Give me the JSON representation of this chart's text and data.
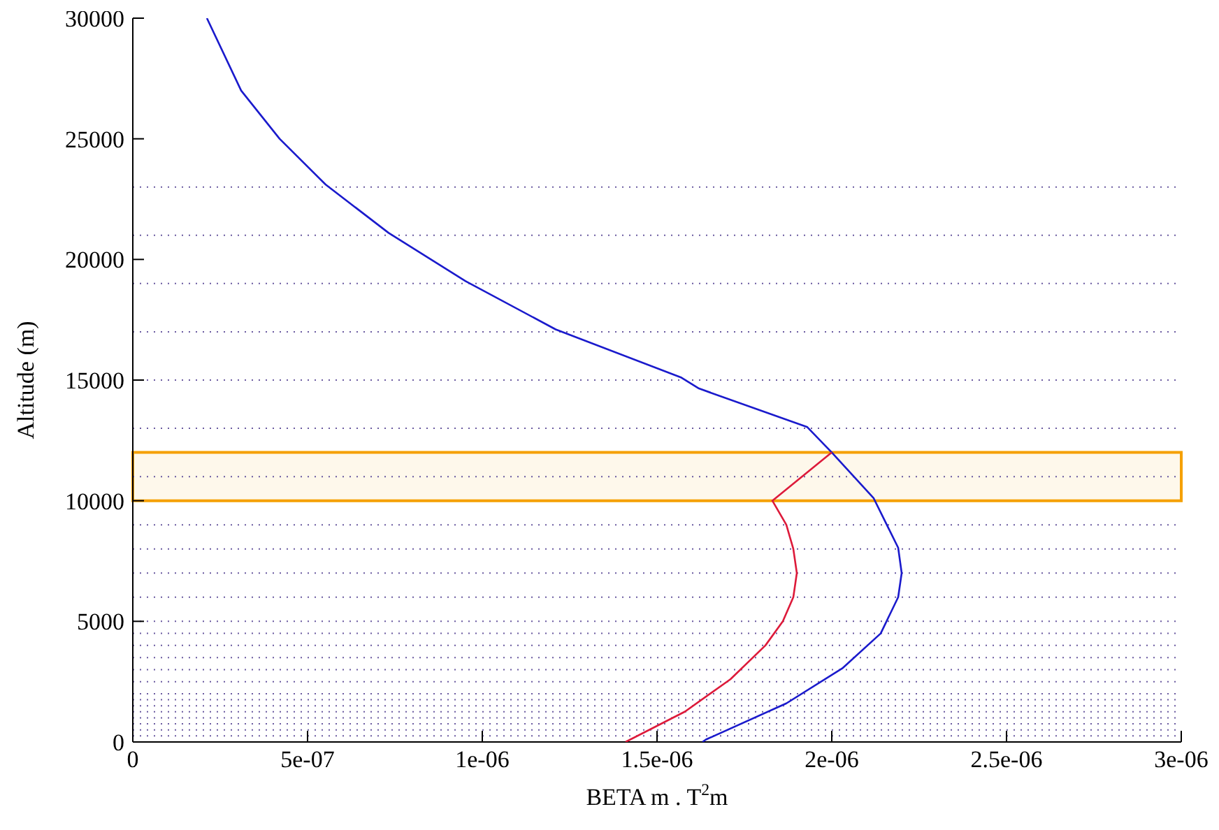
{
  "chart_data": {
    "type": "line",
    "xlabel": "BETA m . T$^{2}$m",
    "ylabel": "Altitude (m)",
    "series": [
      {
        "color": "#1a1acc",
        "x": [
          2.12e-07,
          3.1e-07,
          4.2e-07,
          5.52e-07,
          7.32e-07,
          9.52e-07,
          1.21e-06,
          1.57e-06,
          1.62e-06,
          1.93e-06,
          2e-06,
          2.12e-06,
          2.19e-06,
          2.2e-06,
          2.19e-06,
          2.14e-06,
          2.03e-06,
          1.87e-06,
          1.64e-06,
          1.63e-06
        ],
        "values": [
          30000,
          27000,
          25000,
          23100,
          21100,
          19100,
          17100,
          15100,
          14650,
          13050,
          12000,
          10100,
          8050,
          7000,
          6000,
          4500,
          3050,
          1600,
          100,
          0
        ]
      },
      {
        "color": "#dd1a3a",
        "x": [
          2e-06,
          1.83e-06,
          1.87e-06,
          1.89e-06,
          1.9e-06,
          1.89e-06,
          1.86e-06,
          1.81e-06,
          1.71e-06,
          1.58e-06,
          1.41e-06
        ],
        "values": [
          12000,
          10000,
          9000,
          8000,
          7000,
          6000,
          5000,
          4000,
          2600,
          1260,
          0
        ]
      }
    ],
    "xlim": [
      0,
      3e-06
    ],
    "xticks": [
      0,
      {
        "value": 5e-07,
        "label": "5e-07"
      },
      {
        "value": 1e-06,
        "label": "1e-06"
      },
      {
        "value": 1.5e-06,
        "label": "1.5e-06"
      },
      {
        "value": 2e-06,
        "label": "2e-06"
      },
      {
        "value": 2.5e-06,
        "label": "2.5e-06"
      },
      {
        "value": 3e-06,
        "label": "3e-06"
      }
    ],
    "ylim": [
      0,
      30000
    ],
    "yticks": [
      0,
      5000,
      10000,
      15000,
      20000,
      25000,
      30000
    ],
    "line_style": "solid",
    "marker": "none",
    "grid": false,
    "legend": false,
    "bands": [
      {
        "axis": "y",
        "from": 10000,
        "to": 12000,
        "color": "#f5a000"
      }
    ],
    "ref_lines": [
      {
        "axis": "y",
        "value": 23000,
        "color": "#6a5aa0",
        "line_style": "dotted"
      },
      {
        "axis": "y",
        "value": 21000,
        "color": "#6a5aa0",
        "line_style": "dotted"
      },
      {
        "axis": "y",
        "value": 19000,
        "color": "#6a5aa0",
        "line_style": "dotted"
      },
      {
        "axis": "y",
        "value": 17000,
        "color": "#6a5aa0",
        "line_style": "dotted"
      },
      {
        "axis": "y",
        "value": 15000,
        "color": "#6a5aa0",
        "line_style": "dotted"
      },
      {
        "axis": "y",
        "value": 13000,
        "color": "#6a5aa0",
        "line_style": "dotted"
      },
      {
        "axis": "y",
        "value": 11000,
        "color": "#6a5aa0",
        "line_style": "dotted"
      },
      {
        "axis": "y",
        "value": 9000,
        "color": "#6a5aa0",
        "line_style": "dotted"
      },
      {
        "axis": "y",
        "value": 8000,
        "color": "#6a5aa0",
        "line_style": "dotted"
      },
      {
        "axis": "y",
        "value": 7000,
        "color": "#6a5aa0",
        "line_style": "dotted"
      },
      {
        "axis": "y",
        "value": 6000,
        "color": "#6a5aa0",
        "line_style": "dotted"
      },
      {
        "axis": "y",
        "value": 5000,
        "color": "#6a5aa0",
        "line_style": "dotted"
      },
      {
        "axis": "y",
        "value": 4500,
        "color": "#6a5aa0",
        "line_style": "dotted"
      },
      {
        "axis": "y",
        "value": 4000,
        "color": "#6a5aa0",
        "line_style": "dotted"
      },
      {
        "axis": "y",
        "value": 3500,
        "color": "#6a5aa0",
        "line_style": "dotted"
      },
      {
        "axis": "y",
        "value": 3000,
        "color": "#6a5aa0",
        "line_style": "dotted"
      },
      {
        "axis": "y",
        "value": 2500,
        "color": "#6a5aa0",
        "line_style": "dotted"
      },
      {
        "axis": "y",
        "value": 2000,
        "color": "#6a5aa0",
        "line_style": "dotted"
      },
      {
        "axis": "y",
        "value": 1750,
        "color": "#6a5aa0",
        "line_style": "dotted"
      },
      {
        "axis": "y",
        "value": 1500,
        "color": "#6a5aa0",
        "line_style": "dotted"
      },
      {
        "axis": "y",
        "value": 1250,
        "color": "#6a5aa0",
        "line_style": "dotted"
      },
      {
        "axis": "y",
        "value": 1000,
        "color": "#6a5aa0",
        "line_style": "dotted"
      },
      {
        "axis": "y",
        "value": 750,
        "color": "#6a5aa0",
        "line_style": "dotted"
      },
      {
        "axis": "y",
        "value": 500,
        "color": "#6a5aa0",
        "line_style": "dotted"
      },
      {
        "axis": "y",
        "value": 250,
        "color": "#6a5aa0",
        "line_style": "dotted"
      }
    ]
  }
}
